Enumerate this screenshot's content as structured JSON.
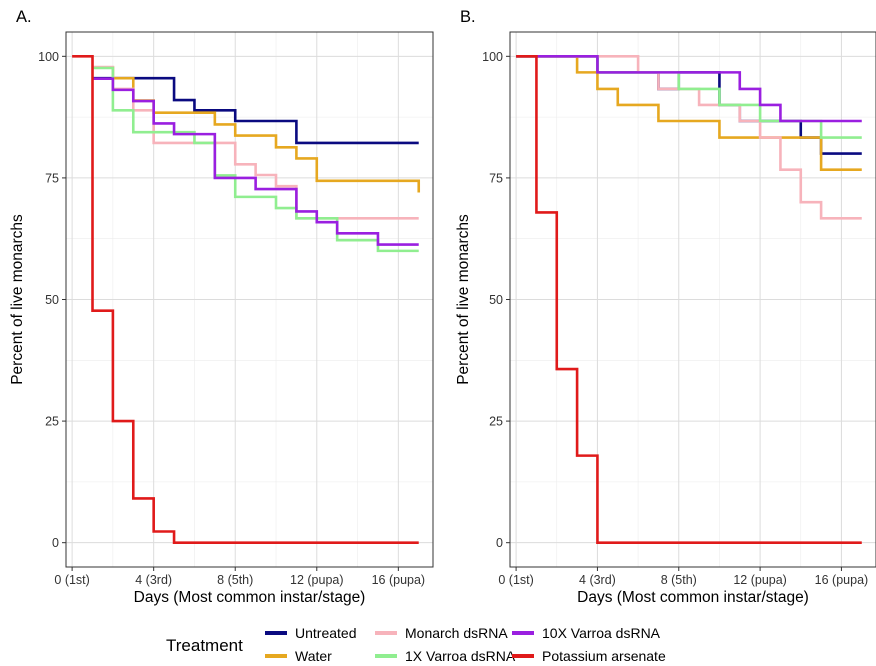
{
  "colors": {
    "Untreated": "#0a0a80",
    "Water": "#e6a820",
    "Monarch dsRNA": "#f7b3bb",
    "1X Varroa dsRNA": "#90ee90",
    "10X Varroa dsRNA": "#9a1fe0",
    "Potassium arsenate": "#e01a1a"
  },
  "legend": {
    "title": "Treatment",
    "items": [
      "Untreated",
      "Water",
      "Monarch dsRNA",
      "1X Varroa dsRNA",
      "10X Varroa dsRNA",
      "Potassium arsenate"
    ]
  },
  "chart_data": [
    {
      "type": "line",
      "step": true,
      "panel": "A.",
      "xlabel": "Days (Most common instar/stage)",
      "ylabel": "Percent of live monarchs",
      "xlim": [
        -0.3,
        17.7
      ],
      "ylim": [
        -5,
        105
      ],
      "x_ticks": [
        0,
        4,
        8,
        12,
        16
      ],
      "x_tick_labels": [
        "0 (1st)",
        "4 (3rd)",
        "8 (5th)",
        "12 (pupa)",
        "16 (pupa)"
      ],
      "y_ticks": [
        0,
        25,
        50,
        75,
        100
      ],
      "y_tick_labels": [
        "0",
        "25",
        "50",
        "75",
        "100"
      ],
      "grid": true,
      "series": [
        {
          "name": "Untreated",
          "x": [
            1,
            5,
            6,
            8,
            11,
            17
          ],
          "y": [
            95.5,
            91,
            88.9,
            86.7,
            82.2,
            82.2
          ]
        },
        {
          "name": "Water",
          "x": [
            1,
            2,
            3,
            4,
            7,
            8,
            10,
            11,
            12,
            17
          ],
          "y": [
            97.7,
            95.5,
            90.9,
            88.4,
            86,
            83.7,
            81.3,
            79,
            74.4,
            72
          ]
        },
        {
          "name": "Monarch dsRNA",
          "x": [
            1,
            2,
            3,
            4,
            5,
            7,
            8,
            9,
            10,
            11,
            17
          ],
          "y": [
            97.8,
            93.3,
            88.9,
            82.2,
            82.2,
            82.2,
            77.8,
            75.6,
            73.3,
            66.7,
            66.7
          ]
        },
        {
          "name": "1X Varroa dsRNA",
          "x": [
            1,
            2,
            3,
            4,
            6,
            7,
            8,
            10,
            11,
            13,
            15,
            17
          ],
          "y": [
            97.6,
            88.9,
            84.4,
            84.4,
            82.2,
            75.5,
            71.1,
            68.8,
            66.7,
            62.2,
            60,
            60
          ]
        },
        {
          "name": "10X Varroa dsRNA",
          "x": [
            1,
            2,
            3,
            4,
            5,
            7,
            9,
            11,
            12,
            13,
            15,
            17
          ],
          "y": [
            95.4,
            93.1,
            90.8,
            86.2,
            84,
            75,
            72.7,
            68.1,
            65.9,
            63.6,
            61.3,
            61.3
          ]
        },
        {
          "name": "Potassium arsenate",
          "x": [
            0,
            1,
            2,
            3,
            4,
            5,
            17
          ],
          "y": [
            100,
            47.7,
            25,
            9.1,
            2.3,
            0,
            0
          ]
        }
      ]
    },
    {
      "type": "line",
      "step": true,
      "panel": "B.",
      "xlabel": "Days (Most common instar/stage)",
      "ylabel": "Percent of live monarchs",
      "xlim": [
        -0.3,
        17.7
      ],
      "ylim": [
        -5,
        105
      ],
      "x_ticks": [
        0,
        4,
        8,
        12,
        16
      ],
      "x_tick_labels": [
        "0 (1st)",
        "4 (3rd)",
        "8 (5th)",
        "12 (pupa)",
        "16 (pupa)"
      ],
      "y_ticks": [
        0,
        25,
        50,
        75,
        100
      ],
      "y_tick_labels": [
        "0",
        "25",
        "50",
        "75",
        "100"
      ],
      "grid": true,
      "series": [
        {
          "name": "Untreated",
          "x": [
            0,
            4,
            6,
            7,
            8,
            10,
            11,
            14,
            15,
            17
          ],
          "y": [
            100,
            96.7,
            96.7,
            93.3,
            96.7,
            90,
            86.7,
            83.3,
            80,
            80
          ]
        },
        {
          "name": "Water",
          "x": [
            0,
            3,
            4,
            5,
            7,
            10,
            15,
            17
          ],
          "y": [
            100,
            96.7,
            93.3,
            90,
            86.7,
            83.3,
            76.7,
            76.7
          ]
        },
        {
          "name": "Monarch dsRNA",
          "x": [
            0,
            6,
            7,
            9,
            11,
            12,
            13,
            14,
            15,
            17
          ],
          "y": [
            100,
            96.7,
            93.3,
            90,
            86.7,
            83.3,
            76.7,
            70,
            66.7,
            66.7
          ]
        },
        {
          "name": "1X Varroa dsRNA",
          "x": [
            0,
            4,
            8,
            10,
            12,
            13,
            15,
            17
          ],
          "y": [
            100,
            96.7,
            93.3,
            90,
            86.7,
            86.7,
            83.3,
            83.3
          ]
        },
        {
          "name": "10X Varroa dsRNA",
          "x": [
            0,
            4,
            11,
            12,
            13,
            17
          ],
          "y": [
            100,
            96.7,
            93.3,
            90,
            86.7,
            86.7
          ]
        },
        {
          "name": "Potassium arsenate",
          "x": [
            0,
            1,
            2,
            3,
            4,
            17
          ],
          "y": [
            100,
            67.9,
            35.7,
            17.9,
            0,
            0
          ]
        }
      ]
    }
  ]
}
